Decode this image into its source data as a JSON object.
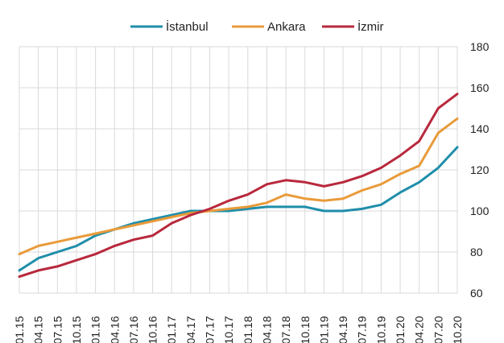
{
  "chart_data": {
    "type": "line",
    "title": "",
    "xlabel": "",
    "ylabel": "",
    "ylim": [
      60,
      180
    ],
    "yticks": [
      60,
      80,
      100,
      120,
      140,
      160,
      180
    ],
    "y_axis_side": "right",
    "grid": true,
    "legend_position": "top-center",
    "categories": [
      "01.15",
      "04.15",
      "07.15",
      "10.15",
      "01.16",
      "04.16",
      "07.16",
      "10.16",
      "01.17",
      "04.17",
      "07.17",
      "10.17",
      "01.18",
      "04.18",
      "07.18",
      "10.18",
      "01.19",
      "04.19",
      "07.19",
      "10.19",
      "01.20",
      "04.20",
      "07.20",
      "10.20"
    ],
    "x_tick_labels": [
      "01.15",
      "04.15",
      "07.15",
      "10.15",
      "01.16",
      "04.16",
      "07.16",
      "10.16",
      "01.17",
      "04.17",
      "07.17",
      "10.17",
      "01.18",
      "04.18",
      "07.18",
      "10.18",
      "01.19",
      "04.19",
      "07.19",
      "10.19",
      "01.20",
      "04.20",
      "07.20",
      "10.20"
    ],
    "series": [
      {
        "name": "İstanbul",
        "color": "#1f8eaa",
        "values": [
          71,
          77,
          80,
          83,
          88,
          91,
          94,
          96,
          98,
          100,
          100,
          100,
          101,
          102,
          102,
          102,
          100,
          100,
          101,
          103,
          109,
          114,
          121,
          131
        ]
      },
      {
        "name": "Ankara",
        "color": "#e89b3a",
        "values": [
          79,
          83,
          85,
          87,
          89,
          91,
          93,
          95,
          97,
          99,
          100,
          101,
          102,
          104,
          108,
          106,
          105,
          106,
          110,
          113,
          118,
          122,
          138,
          145
        ]
      },
      {
        "name": "İzmir",
        "color": "#b8283c",
        "values": [
          68,
          71,
          73,
          76,
          79,
          83,
          86,
          88,
          94,
          98,
          101,
          105,
          108,
          113,
          115,
          114,
          112,
          114,
          117,
          121,
          127,
          134,
          150,
          157
        ]
      }
    ]
  }
}
